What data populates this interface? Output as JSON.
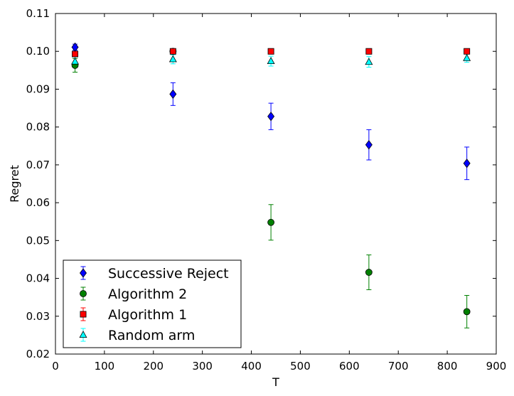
{
  "chart_data": {
    "type": "scatter",
    "title": "",
    "xlabel": "T",
    "ylabel": "Regret",
    "xlim": [
      0,
      900
    ],
    "ylim": [
      0.02,
      0.11
    ],
    "xticks": [
      0,
      100,
      200,
      300,
      400,
      500,
      600,
      700,
      800,
      900
    ],
    "yticks": [
      0.02,
      0.03,
      0.04,
      0.05,
      0.06,
      0.07,
      0.08,
      0.09,
      0.1,
      0.11
    ],
    "xtick_labels": [
      "0",
      "100",
      "200",
      "300",
      "400",
      "500",
      "600",
      "700",
      "800",
      "900"
    ],
    "ytick_labels": [
      "0.02",
      "0.03",
      "0.04",
      "0.05",
      "0.06",
      "0.07",
      "0.08",
      "0.09",
      "0.10",
      "0.11"
    ],
    "grid": false,
    "legend": {
      "position": "lower-left"
    },
    "series": [
      {
        "name": "Successive Reject",
        "marker": "diamond",
        "color": "#0000ff",
        "x": [
          40,
          240,
          440,
          640,
          840
        ],
        "y": [
          0.1011,
          0.0887,
          0.0828,
          0.0753,
          0.0704
        ],
        "err": [
          0.0008,
          0.003,
          0.0035,
          0.004,
          0.0043
        ]
      },
      {
        "name": "Algorithm 2",
        "marker": "circle",
        "color": "#008000",
        "x": [
          40,
          240,
          440,
          640,
          840
        ],
        "y": [
          0.0963,
          0.1,
          0.0548,
          0.0416,
          0.0312
        ],
        "err": [
          0.0018,
          0.0005,
          0.0047,
          0.0046,
          0.0043
        ]
      },
      {
        "name": "Algorithm 1",
        "marker": "square",
        "color": "#ff0000",
        "x": [
          40,
          240,
          440,
          640,
          840
        ],
        "y": [
          0.0993,
          0.1,
          0.1,
          0.1,
          0.1
        ],
        "err": [
          0.0003,
          0.0002,
          0.0002,
          0.0002,
          0.0002
        ]
      },
      {
        "name": "Random arm",
        "marker": "triangle",
        "color": "#00ffff",
        "x": [
          40,
          240,
          440,
          640,
          840
        ],
        "y": [
          0.0973,
          0.0979,
          0.0974,
          0.0972,
          0.0982
        ],
        "err": [
          0.0012,
          0.0012,
          0.0013,
          0.0014,
          0.0011
        ]
      }
    ]
  }
}
